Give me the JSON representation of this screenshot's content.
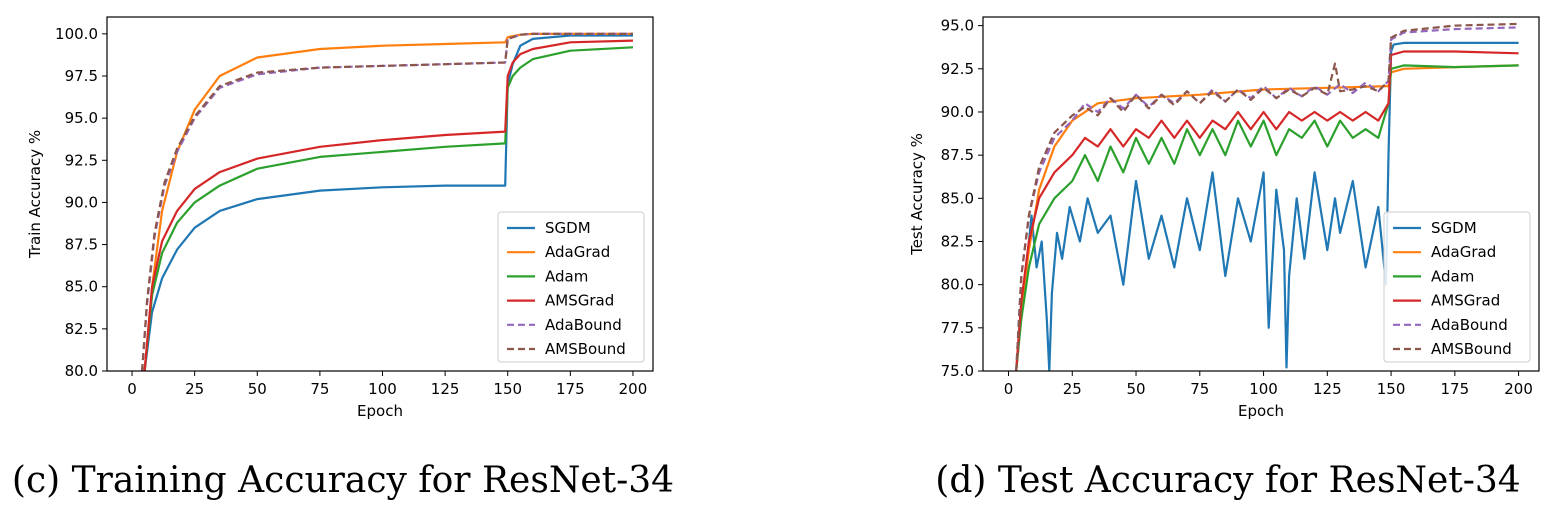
{
  "legend_entries": [
    {
      "name": "SGDM",
      "color": "#1f77b4",
      "dashed": false
    },
    {
      "name": "AdaGrad",
      "color": "#ff7f0e",
      "dashed": false
    },
    {
      "name": "Adam",
      "color": "#2ca02c",
      "dashed": false
    },
    {
      "name": "AMSGrad",
      "color": "#d62728",
      "dashed": false
    },
    {
      "name": "AdaBound",
      "color": "#9467bd",
      "dashed": true
    },
    {
      "name": "AMSBound",
      "color": "#8c564b",
      "dashed": true
    }
  ],
  "chart_data": [
    {
      "type": "line",
      "caption": "(c) Training Accuracy for ResNet-34",
      "xlabel": "Epoch",
      "ylabel": "Train Accuracy %",
      "xlim": [
        -10,
        208
      ],
      "ylim": [
        80,
        101
      ],
      "xticks": [
        0,
        25,
        50,
        75,
        100,
        125,
        150,
        175,
        200
      ],
      "yticks": [
        80.0,
        82.5,
        85.0,
        87.5,
        90.0,
        92.5,
        95.0,
        97.5,
        100.0
      ],
      "legend_position": "lower right",
      "grid": false,
      "series": [
        {
          "name": "SGDM",
          "x": [
            5,
            8,
            12,
            18,
            25,
            35,
            50,
            75,
            100,
            125,
            149,
            150,
            152,
            155,
            160,
            175,
            200
          ],
          "y": [
            80.0,
            83.5,
            85.5,
            87.2,
            88.5,
            89.5,
            90.2,
            90.7,
            90.9,
            91.0,
            91.0,
            97.0,
            98.2,
            99.3,
            99.7,
            99.9,
            99.9
          ]
        },
        {
          "name": "AdaGrad",
          "x": [
            5,
            8,
            12,
            18,
            25,
            35,
            50,
            75,
            100,
            125,
            149,
            150,
            155,
            160,
            175,
            200
          ],
          "y": [
            80.0,
            85.0,
            89.5,
            93.0,
            95.5,
            97.5,
            98.6,
            99.1,
            99.3,
            99.4,
            99.5,
            99.8,
            99.95,
            100.0,
            100.0,
            100.0
          ]
        },
        {
          "name": "Adam",
          "x": [
            5,
            8,
            12,
            18,
            25,
            35,
            50,
            75,
            100,
            125,
            149,
            150,
            152,
            155,
            160,
            175,
            200
          ],
          "y": [
            80.0,
            84.5,
            87.0,
            88.8,
            90.0,
            91.0,
            92.0,
            92.7,
            93.0,
            93.3,
            93.5,
            96.8,
            97.5,
            98.0,
            98.5,
            99.0,
            99.2
          ]
        },
        {
          "name": "AMSGrad",
          "x": [
            5,
            8,
            12,
            18,
            25,
            35,
            50,
            75,
            100,
            125,
            149,
            150,
            152,
            155,
            160,
            175,
            200
          ],
          "y": [
            80.0,
            85.0,
            87.7,
            89.5,
            90.8,
            91.8,
            92.6,
            93.3,
            93.7,
            94.0,
            94.2,
            97.5,
            98.3,
            98.8,
            99.1,
            99.5,
            99.6
          ]
        },
        {
          "name": "AdaBound",
          "x": [
            4,
            6,
            9,
            13,
            18,
            25,
            35,
            50,
            75,
            100,
            125,
            149,
            150,
            155,
            160,
            175,
            200
          ],
          "y": [
            80.0,
            84.0,
            88.0,
            91.0,
            93.0,
            95.0,
            96.8,
            97.6,
            98.0,
            98.1,
            98.2,
            98.3,
            99.7,
            99.95,
            100.0,
            100.0,
            100.0
          ]
        },
        {
          "name": "AMSBound",
          "x": [
            4,
            6,
            9,
            13,
            18,
            25,
            35,
            50,
            75,
            100,
            125,
            149,
            150,
            155,
            160,
            175,
            200
          ],
          "y": [
            80.0,
            84.2,
            88.2,
            91.2,
            93.2,
            95.1,
            96.9,
            97.7,
            98.0,
            98.1,
            98.2,
            98.3,
            99.7,
            99.95,
            100.0,
            100.0,
            100.0
          ]
        }
      ]
    },
    {
      "type": "line",
      "caption": "(d) Test Accuracy for ResNet-34",
      "xlabel": "Epoch",
      "ylabel": "Test Accuracy %",
      "xlim": [
        -10,
        208
      ],
      "ylim": [
        75,
        95.5
      ],
      "xticks": [
        0,
        25,
        50,
        75,
        100,
        125,
        150,
        175,
        200
      ],
      "yticks": [
        75.0,
        77.5,
        80.0,
        82.5,
        85.0,
        87.5,
        90.0,
        92.5,
        95.0
      ],
      "legend_position": "lower right",
      "grid": false,
      "series": [
        {
          "name": "SGDM",
          "x": [
            3,
            5,
            7,
            9,
            11,
            13,
            15,
            16,
            17,
            19,
            21,
            24,
            28,
            31,
            35,
            40,
            45,
            50,
            55,
            60,
            65,
            70,
            75,
            80,
            85,
            90,
            95,
            100,
            102,
            105,
            108,
            109,
            110,
            113,
            116,
            120,
            125,
            128,
            130,
            135,
            140,
            145,
            148,
            149,
            150,
            151,
            155,
            160,
            175,
            200
          ],
          "y": [
            75.0,
            79.0,
            81.0,
            84.0,
            81.0,
            82.5,
            78.0,
            75.0,
            79.5,
            83.0,
            81.5,
            84.5,
            82.5,
            85.0,
            83.0,
            84.0,
            80.0,
            86.0,
            81.5,
            84.0,
            81.0,
            85.0,
            82.0,
            86.5,
            80.5,
            85.0,
            82.5,
            86.5,
            77.5,
            85.5,
            82.0,
            75.2,
            80.5,
            85.0,
            81.5,
            86.5,
            82.0,
            85.0,
            83.0,
            86.0,
            81.0,
            84.5,
            80.0,
            87.5,
            93.5,
            93.9,
            94.0,
            94.0,
            94.0,
            94.0
          ]
        },
        {
          "name": "AdaGrad",
          "x": [
            3,
            5,
            8,
            12,
            18,
            25,
            35,
            50,
            75,
            100,
            125,
            149,
            150,
            155,
            175,
            200
          ],
          "y": [
            75.0,
            78.5,
            82.0,
            85.5,
            88.0,
            89.5,
            90.5,
            90.8,
            91.0,
            91.3,
            91.4,
            91.5,
            92.3,
            92.5,
            92.6,
            92.7
          ]
        },
        {
          "name": "Adam",
          "x": [
            3,
            5,
            8,
            12,
            18,
            25,
            30,
            35,
            40,
            45,
            50,
            55,
            60,
            65,
            70,
            75,
            80,
            85,
            90,
            95,
            100,
            105,
            110,
            115,
            120,
            125,
            130,
            135,
            140,
            145,
            149,
            150,
            155,
            175,
            200
          ],
          "y": [
            75.0,
            78.0,
            81.0,
            83.5,
            85.0,
            86.0,
            87.5,
            86.0,
            88.0,
            86.5,
            88.5,
            87.0,
            88.5,
            87.0,
            89.0,
            87.5,
            89.0,
            87.5,
            89.5,
            88.0,
            89.5,
            87.5,
            89.0,
            88.5,
            89.5,
            88.0,
            89.5,
            88.5,
            89.0,
            88.5,
            90.5,
            92.5,
            92.7,
            92.6,
            92.7
          ]
        },
        {
          "name": "AMSGrad",
          "x": [
            3,
            5,
            8,
            12,
            18,
            25,
            30,
            35,
            40,
            45,
            50,
            55,
            60,
            65,
            70,
            75,
            80,
            85,
            90,
            95,
            100,
            105,
            110,
            115,
            120,
            125,
            130,
            135,
            140,
            145,
            149,
            150,
            155,
            175,
            200
          ],
          "y": [
            75.0,
            79.0,
            82.5,
            85.0,
            86.5,
            87.5,
            88.5,
            88.0,
            89.0,
            88.0,
            89.0,
            88.5,
            89.5,
            88.5,
            89.5,
            88.5,
            89.5,
            89.0,
            90.0,
            89.0,
            90.0,
            89.0,
            90.0,
            89.5,
            90.0,
            89.5,
            90.0,
            89.5,
            90.0,
            89.5,
            90.5,
            93.3,
            93.5,
            93.5,
            93.4
          ]
        },
        {
          "name": "AdaBound",
          "x": [
            3,
            5,
            8,
            12,
            18,
            25,
            30,
            35,
            40,
            45,
            50,
            55,
            60,
            65,
            70,
            75,
            80,
            85,
            90,
            95,
            100,
            105,
            110,
            115,
            120,
            125,
            130,
            135,
            140,
            145,
            149,
            150,
            155,
            175,
            200
          ],
          "y": [
            75.0,
            80.5,
            84.0,
            86.5,
            88.5,
            89.5,
            90.5,
            90.0,
            90.8,
            90.2,
            91.0,
            90.3,
            91.0,
            90.5,
            91.2,
            90.5,
            91.3,
            90.6,
            91.3,
            90.8,
            91.5,
            90.8,
            91.4,
            90.9,
            91.5,
            91.0,
            91.6,
            91.1,
            91.7,
            91.2,
            91.8,
            94.2,
            94.6,
            94.8,
            94.9
          ]
        },
        {
          "name": "AMSBound",
          "x": [
            3,
            5,
            8,
            12,
            18,
            25,
            30,
            35,
            40,
            45,
            50,
            55,
            60,
            65,
            70,
            75,
            80,
            85,
            90,
            95,
            100,
            105,
            110,
            115,
            120,
            125,
            128,
            130,
            135,
            140,
            145,
            149,
            150,
            155,
            175,
            200
          ],
          "y": [
            75.0,
            80.5,
            84.0,
            86.8,
            88.8,
            89.8,
            90.3,
            89.8,
            90.8,
            90.0,
            91.0,
            90.2,
            91.0,
            90.4,
            91.2,
            90.5,
            91.2,
            90.6,
            91.3,
            90.7,
            91.4,
            90.8,
            91.3,
            90.9,
            91.4,
            91.0,
            92.8,
            91.2,
            91.3,
            91.5,
            91.2,
            91.8,
            94.3,
            94.7,
            95.0,
            95.1
          ]
        }
      ]
    }
  ]
}
